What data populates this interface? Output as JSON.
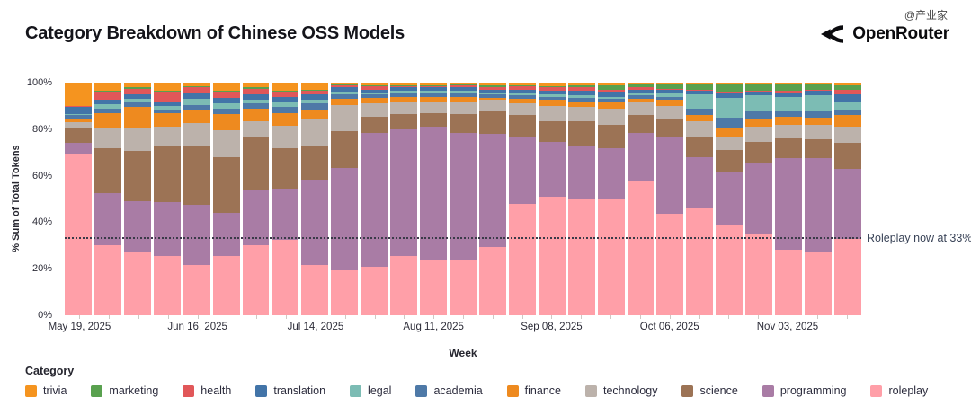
{
  "title": "Category Breakdown of Chinese OSS Models",
  "brand": {
    "name": "OpenRouter"
  },
  "watermark": "@产业家",
  "legend": {
    "title": "Category",
    "items": [
      {
        "label": "trivia",
        "color": "#f5941f"
      },
      {
        "label": "marketing",
        "color": "#59a14f"
      },
      {
        "label": "health",
        "color": "#e15759"
      },
      {
        "label": "translation",
        "color": "#4274a8"
      },
      {
        "label": "legal",
        "color": "#7cbcb4"
      },
      {
        "label": "academia",
        "color": "#4e79a7"
      },
      {
        "label": "finance",
        "color": "#ee8a1f"
      },
      {
        "label": "technology",
        "color": "#bcb2ab"
      },
      {
        "label": "science",
        "color": "#9c7355"
      },
      {
        "label": "programming",
        "color": "#a97ca5"
      },
      {
        "label": "roleplay",
        "color": "#ff9fa8"
      }
    ]
  },
  "chart_data": {
    "type": "bar",
    "stacked": true,
    "title": "Category Breakdown of Chinese OSS Models",
    "xlabel": "Week",
    "ylabel": "% Sum of Total Tokens",
    "ylim": [
      0,
      100
    ],
    "y_ticks": [
      0,
      20,
      40,
      60,
      80,
      100
    ],
    "x": [
      "May 19, 2025",
      "May 26, 2025",
      "Jun 02, 2025",
      "Jun 09, 2025",
      "Jun 16, 2025",
      "Jun 23, 2025",
      "Jun 30, 2025",
      "Jul 07, 2025",
      "Jul 14, 2025",
      "Jul 21, 2025",
      "Jul 28, 2025",
      "Aug 04, 2025",
      "Aug 11, 2025",
      "Aug 18, 2025",
      "Aug 25, 2025",
      "Sep 01, 2025",
      "Sep 08, 2025",
      "Sep 15, 2025",
      "Sep 22, 2025",
      "Sep 29, 2025",
      "Oct 06, 2025",
      "Oct 13, 2025",
      "Oct 20, 2025",
      "Oct 27, 2025",
      "Nov 03, 2025",
      "Nov 10, 2025",
      "Nov 17, 2025"
    ],
    "x_ticks": [
      {
        "index": 0,
        "label": "May 19, 2025"
      },
      {
        "index": 4,
        "label": "Jun 16, 2025"
      },
      {
        "index": 8,
        "label": "Jul 14, 2025"
      },
      {
        "index": 12,
        "label": "Aug 11, 2025"
      },
      {
        "index": 16,
        "label": "Sep 08, 2025"
      },
      {
        "index": 20,
        "label": "Oct 06, 2025"
      },
      {
        "index": 24,
        "label": "Nov 03, 2025"
      }
    ],
    "series": [
      {
        "name": "roleplay",
        "color": "#ff9fa8",
        "values": [
          69,
          30,
          27.5,
          25.5,
          21.5,
          25.5,
          30,
          32.5,
          21.5,
          19.5,
          21,
          25.5,
          24,
          23.5,
          29.5,
          48,
          51,
          50,
          50,
          57.5,
          43.5,
          46,
          39,
          35,
          28,
          27.5,
          33
        ]
      },
      {
        "name": "programming",
        "color": "#a97ca5",
        "values": [
          5,
          22.5,
          21.5,
          23,
          26,
          18.5,
          24,
          22,
          37,
          44,
          57.5,
          54.5,
          57,
          55,
          49,
          28.5,
          23.5,
          23,
          22,
          21,
          33,
          22,
          22.5,
          30.5,
          39.5,
          40,
          30
        ]
      },
      {
        "name": "science",
        "color": "#9c7355",
        "values": [
          6.5,
          19.5,
          21.5,
          24,
          25.5,
          24,
          22.5,
          17.5,
          14.5,
          15.5,
          7,
          6.5,
          6,
          8,
          9.5,
          9.5,
          9,
          10.5,
          10,
          7.5,
          7.5,
          9,
          9.5,
          9,
          8.5,
          8,
          11
        ]
      },
      {
        "name": "technology",
        "color": "#bcb2ab",
        "values": [
          2.5,
          8.5,
          10,
          8.5,
          9.5,
          11.5,
          7,
          9.5,
          11,
          11.5,
          5.5,
          5.5,
          5,
          5.5,
          5,
          5,
          6.5,
          6,
          7,
          5.5,
          6,
          6.5,
          6,
          6.5,
          6,
          6.5,
          7
        ]
      },
      {
        "name": "finance",
        "color": "#ee8a1f",
        "values": [
          1.5,
          6.5,
          9,
          6,
          6,
          7,
          5.5,
          5.5,
          4.5,
          2.5,
          2.5,
          2,
          2,
          2,
          1,
          2,
          2.5,
          2.5,
          2.5,
          1.5,
          2.5,
          2.5,
          3.5,
          3.5,
          3.5,
          3,
          5
        ]
      },
      {
        "name": "academia",
        "color": "#4e79a7",
        "values": [
          1.5,
          1.7,
          2,
          1.5,
          2,
          2.5,
          2,
          2.5,
          2.5,
          2,
          1.5,
          1.5,
          1.5,
          1.5,
          1.5,
          1.5,
          1.5,
          1.5,
          1.5,
          1.5,
          1.5,
          3,
          4.5,
          3,
          2,
          2.5,
          2.5
        ]
      },
      {
        "name": "legal",
        "color": "#7cbcb4",
        "values": [
          0.5,
          2,
          1.5,
          1.5,
          2.5,
          2,
          1.5,
          2,
          1.5,
          1,
          0.5,
          1,
          1,
          1,
          0.5,
          1,
          1,
          1,
          1,
          1,
          1.5,
          6,
          8.5,
          7,
          6.5,
          7,
          3.5
        ]
      },
      {
        "name": "translation",
        "color": "#4274a8",
        "values": [
          3,
          2,
          2,
          2,
          2.5,
          2.5,
          2.5,
          2.5,
          2.5,
          2,
          1.5,
          1.5,
          1.5,
          1.5,
          1.5,
          1.5,
          1.5,
          2,
          2,
          1.5,
          1.5,
          1.5,
          2,
          1.5,
          1.5,
          2,
          3
        ]
      },
      {
        "name": "health",
        "color": "#e15759",
        "values": [
          0.5,
          3.3,
          2.5,
          4,
          2.5,
          2.5,
          2.5,
          2,
          1.5,
          1,
          1.5,
          0.5,
          0.5,
          1,
          1,
          1.5,
          1.5,
          1.5,
          1,
          1,
          0.5,
          0.5,
          0.5,
          0.5,
          1,
          0.5,
          2
        ]
      },
      {
        "name": "marketing",
        "color": "#59a14f",
        "values": [
          0,
          0.5,
          0.5,
          0.5,
          0.5,
          0.5,
          0.5,
          0.5,
          0.5,
          0.5,
          0.5,
          0.5,
          0.5,
          0.5,
          1,
          0.5,
          0.5,
          1,
          2,
          1.5,
          2,
          2.5,
          3.5,
          3,
          3,
          2.5,
          2
        ]
      },
      {
        "name": "trivia",
        "color": "#f5941f",
        "values": [
          10,
          3.5,
          2,
          3.5,
          1.5,
          3.5,
          2,
          3.5,
          3,
          0.5,
          1,
          1,
          1,
          0.5,
          1,
          1,
          1.5,
          1,
          1,
          0.5,
          0.5,
          0.5,
          0.5,
          0.5,
          0.5,
          0.5,
          1
        ]
      }
    ],
    "reference_line": {
      "y": 33,
      "label": "Roleplay now at 33%"
    },
    "legend_position": "bottom",
    "grid": false
  }
}
